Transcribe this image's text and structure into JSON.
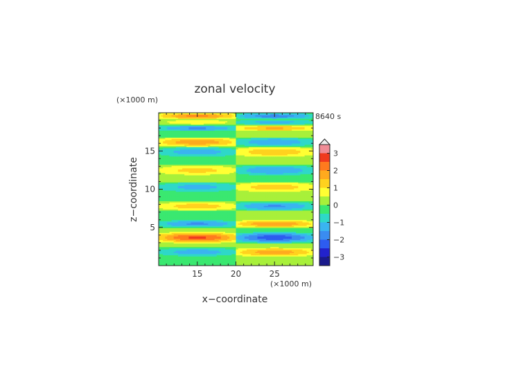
{
  "chart_data": {
    "type": "heatmap",
    "title": "zonal velocity",
    "xlabel": "x−coordinate",
    "ylabel": "z−coordinate",
    "x_unit": "(×1000 m)",
    "y_unit": "(×1000 m)",
    "time_label": "8640 s",
    "xlim": [
      10,
      30
    ],
    "ylim": [
      0,
      20
    ],
    "x_ticks": [
      15,
      20,
      25
    ],
    "y_ticks": [
      5,
      10,
      15
    ],
    "colorbar": {
      "levels": [
        -3.5,
        -3,
        -2.5,
        -2,
        -1.5,
        -1,
        -0.5,
        0,
        0.5,
        1,
        1.5,
        2,
        2.5,
        3,
        3.5
      ],
      "colors": [
        "#1a1a8c",
        "#2222cc",
        "#2d5cf0",
        "#3a8cf0",
        "#3ab4f0",
        "#2ed8c8",
        "#3ae870",
        "#a8f03a",
        "#ffff33",
        "#ffd21e",
        "#ffaa1e",
        "#ff7a1e",
        "#f03a1e",
        "#f08c96",
        "#fab4bc"
      ],
      "tick_labels": [
        "3",
        "2",
        "1",
        "0",
        "−1",
        "−2",
        "−3"
      ],
      "tick_values": [
        3,
        2,
        1,
        0,
        -1,
        -2,
        -3
      ],
      "extend": "max"
    },
    "layers": [
      {
        "z": [
          0,
          1.2
        ],
        "left": -0.1,
        "right": 0.1
      },
      {
        "z": [
          1.2,
          2.4
        ],
        "left": -1.3,
        "right": 1.8
      },
      {
        "z": [
          2.4,
          3.0
        ],
        "left": 0.4,
        "right": 0.3
      },
      {
        "z": [
          3.0,
          4.4
        ],
        "left": 2.6,
        "right": -2.3
      },
      {
        "z": [
          4.4,
          5.0
        ],
        "left": 0.3,
        "right": -0.2
      },
      {
        "z": [
          5.0,
          6.0
        ],
        "left": -1.6,
        "right": 2.0
      },
      {
        "z": [
          6.0,
          7.2
        ],
        "left": -0.4,
        "right": 0.2
      },
      {
        "z": [
          7.2,
          8.4
        ],
        "left": 1.3,
        "right": -1.6
      },
      {
        "z": [
          8.4,
          9.6
        ],
        "left": -0.2,
        "right": 0.3
      },
      {
        "z": [
          9.6,
          11.0
        ],
        "left": -1.2,
        "right": 1.3
      },
      {
        "z": [
          11.0,
          11.8
        ],
        "left": 0.2,
        "right": -0.2
      },
      {
        "z": [
          11.8,
          13.2
        ],
        "left": 1.2,
        "right": -1.5
      },
      {
        "z": [
          13.2,
          14.2
        ],
        "left": -0.4,
        "right": 0.5
      },
      {
        "z": [
          14.2,
          15.6
        ],
        "left": -1.3,
        "right": 1.4
      },
      {
        "z": [
          15.6,
          16.8
        ],
        "left": 1.9,
        "right": -1.4
      },
      {
        "z": [
          16.8,
          17.6
        ],
        "left": -0.3,
        "right": 0.4
      },
      {
        "z": [
          17.6,
          18.4
        ],
        "left": -1.6,
        "right": 1.6
      },
      {
        "z": [
          18.4,
          19.2
        ],
        "left": 0.8,
        "right": -1.2
      },
      {
        "z": [
          19.2,
          20.0
        ],
        "left": 2.1,
        "right": -1.8
      }
    ]
  }
}
